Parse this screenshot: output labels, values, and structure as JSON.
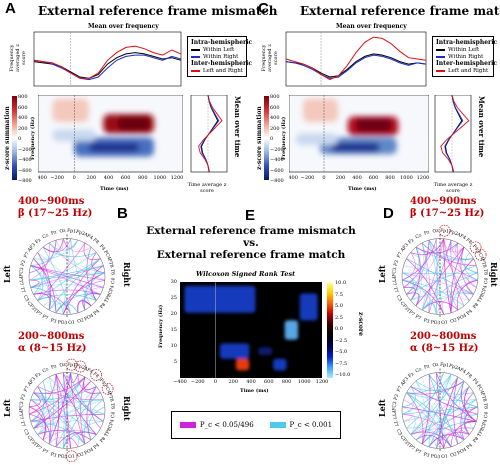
{
  "panels": {
    "A": {
      "label": "A",
      "title": "External reference frame mismatch",
      "freq_plot_title": "Mean over frequency",
      "freq_ylabel": "Frequency averaged z score",
      "tf_ylabel": "Frequency (Hz)",
      "tf_xlabel": "Time (ms)",
      "tf_xticks": [
        "−400",
        "−200",
        "0",
        "200",
        "400",
        "600",
        "800",
        "1000",
        "1200"
      ],
      "tf_yticks": [
        "10",
        "20",
        "30"
      ],
      "colorbar_label": "z-score summation",
      "colorbar_ticks": [
        "800",
        "600",
        "400",
        "200",
        "0",
        "−200",
        "−400",
        "−600",
        "−800"
      ],
      "time_avg_title": "Mean over time",
      "time_avg_xlabel": "Time average z score",
      "legend": {
        "intra_header": "Intra-hemispheric",
        "within_left": "Within Left",
        "within_right": "Within Right",
        "inter_header": "Inter-hemispheric",
        "left_right": "Left and Right"
      }
    },
    "C": {
      "label": "C",
      "title": "External reference frame match",
      "freq_plot_title": "Mean over frequency",
      "freq_ylabel": "Frequency averaged z score",
      "tf_ylabel": "Frequency (Hz)",
      "tf_xlabel": "Time (ms)",
      "tf_xticks": [
        "−400",
        "−200",
        "0",
        "200",
        "400",
        "600",
        "800",
        "1000",
        "1200"
      ],
      "tf_yticks": [
        "10",
        "20",
        "30"
      ],
      "colorbar_label": "z-score summation",
      "colorbar_ticks": [
        "800",
        "600",
        "400",
        "200",
        "0",
        "−200",
        "−400",
        "−600",
        "−800"
      ],
      "time_avg_title": "Mean over time",
      "time_avg_xlabel": "Time average z score",
      "legend": {
        "intra_header": "Intra-hemispheric",
        "within_left": "Within Left",
        "within_right": "Within Right",
        "inter_header": "Inter-hemispheric",
        "left_right": "Left and Right"
      }
    },
    "B": {
      "label": "B",
      "top_window": "400~900ms",
      "top_band": "β (17~25 Hz)",
      "bottom_window": "200~800ms",
      "bottom_band": "α (8~15 Hz)",
      "left": "Left",
      "right": "Right"
    },
    "D": {
      "label": "D",
      "top_window": "400~900ms",
      "top_band": "β (17~25 Hz)",
      "bottom_window": "200~800ms",
      "bottom_band": "α (8~15 Hz)",
      "left": "Left",
      "right": "Right"
    },
    "E": {
      "label": "E",
      "title_line1": "External reference frame mismatch",
      "title_vs": "vs.",
      "title_line2": "External reference frame match",
      "subtitle": "Wilcoxon Signed Rank Test",
      "ylabel": "Frequency (Hz)",
      "xlabel": "Time (ms)",
      "xticks": [
        "−400",
        "−200",
        "0",
        "200",
        "400",
        "600",
        "800",
        "1000",
        "1200"
      ],
      "yticks": [
        "30",
        "25",
        "20",
        "15",
        "10",
        "5"
      ],
      "colorbar_label": "z-score",
      "colorbar_ticks": [
        "10.0",
        "7.5",
        "5.0",
        "2.5",
        "0.0",
        "−2.5",
        "−5.0",
        "−7.5",
        "−10.0"
      ]
    }
  },
  "electrodes": [
    "Fp1",
    "Fp2",
    "AF4",
    "F8",
    "F4",
    "FC4",
    "FT8",
    "T8",
    "C4",
    "CP4",
    "TP8",
    "P8",
    "P4",
    "PO4",
    "O2",
    "O1",
    "PO3",
    "P3",
    "P7",
    "TP7",
    "CP3",
    "C3",
    "T7",
    "FT7",
    "FC3",
    "F3",
    "F7",
    "AF3",
    "Fz",
    "Cz",
    "Pz",
    "Oz"
  ],
  "bottom_legend": {
    "magenta_text": "P_c < 0.05/496",
    "cyan_text": "P_c < 0.001"
  },
  "colors": {
    "inter_red": "#e01010",
    "within_left": "#000000",
    "within_right": "#1a2ccc",
    "magenta": "#d020e0",
    "cyan": "#50c8e8",
    "label_red": "#c00000"
  },
  "chart_data": [
    {
      "type": "line",
      "panel": "A",
      "title": "Mean over frequency",
      "xlabel": "Time (ms)",
      "xlim": [
        -400,
        1200
      ],
      "x": [
        -400,
        -300,
        -200,
        -100,
        0,
        100,
        200,
        300,
        400,
        500,
        600,
        700,
        800,
        900,
        1000,
        1100,
        1200
      ],
      "series": [
        {
          "name": "Within Left",
          "values": [
            0.3,
            0.2,
            0.1,
            -0.1,
            -0.5,
            -0.9,
            -1.0,
            -0.7,
            0.1,
            0.6,
            0.9,
            1.0,
            0.9,
            0.7,
            0.5,
            0.6,
            0.4
          ]
        },
        {
          "name": "Within Right",
          "values": [
            0.4,
            0.3,
            0.1,
            -0.2,
            -0.6,
            -1.0,
            -1.1,
            -0.9,
            -0.2,
            0.4,
            0.7,
            0.8,
            0.8,
            0.6,
            0.4,
            0.7,
            0.5
          ]
        },
        {
          "name": "Left and Right",
          "values": [
            0.4,
            0.3,
            0.2,
            -0.1,
            -0.6,
            -1.0,
            -1.0,
            -0.6,
            0.4,
            1.0,
            1.4,
            1.5,
            1.3,
            1.0,
            0.8,
            1.2,
            0.9
          ]
        }
      ]
    },
    {
      "type": "line",
      "panel": "C",
      "title": "Mean over frequency",
      "xlabel": "Time (ms)",
      "xlim": [
        -400,
        1200
      ],
      "x": [
        -400,
        -300,
        -200,
        -100,
        0,
        100,
        200,
        300,
        400,
        500,
        600,
        700,
        800,
        900,
        1000,
        1100,
        1200
      ],
      "series": [
        {
          "name": "Within Left",
          "values": [
            0.3,
            0.2,
            0.1,
            -0.2,
            -0.6,
            -0.9,
            -0.8,
            -0.3,
            0.3,
            0.7,
            0.9,
            0.8,
            0.6,
            0.3,
            0.1,
            0.2,
            0.1
          ]
        },
        {
          "name": "Within Right",
          "values": [
            0.3,
            0.2,
            0.0,
            -0.3,
            -0.7,
            -1.0,
            -0.9,
            -0.4,
            0.2,
            0.6,
            0.8,
            0.7,
            0.5,
            0.2,
            0.0,
            0.2,
            0.1
          ]
        },
        {
          "name": "Left and Right",
          "values": [
            0.5,
            0.3,
            0.1,
            -0.2,
            -0.7,
            -1.1,
            -0.8,
            0.0,
            1.0,
            1.8,
            2.2,
            2.1,
            1.7,
            1.1,
            0.6,
            0.5,
            0.4
          ]
        }
      ]
    },
    {
      "type": "heatmap",
      "panel": "E",
      "title": "Wilcoxon Signed Rank Test",
      "xlabel": "Time (ms)",
      "ylabel": "Frequency (Hz)",
      "xlim": [
        -400,
        1200
      ],
      "ylim": [
        5,
        30
      ],
      "zlim": [
        -10,
        10
      ],
      "blobs": [
        {
          "t": [
            -350,
            450
          ],
          "f": [
            22,
            29
          ],
          "z": -6
        },
        {
          "t": [
            50,
            380
          ],
          "f": [
            10,
            14
          ],
          "z": -5
        },
        {
          "t": [
            230,
            380
          ],
          "f": [
            7,
            10
          ],
          "z": 8
        },
        {
          "t": [
            480,
            640
          ],
          "f": [
            11,
            13
          ],
          "z": -4
        },
        {
          "t": [
            780,
            930
          ],
          "f": [
            15,
            20
          ],
          "z": -7
        },
        {
          "t": [
            950,
            1150
          ],
          "f": [
            20,
            27
          ],
          "z": -6
        },
        {
          "t": [
            650,
            800
          ],
          "f": [
            7,
            10
          ],
          "z": -5
        }
      ]
    }
  ]
}
